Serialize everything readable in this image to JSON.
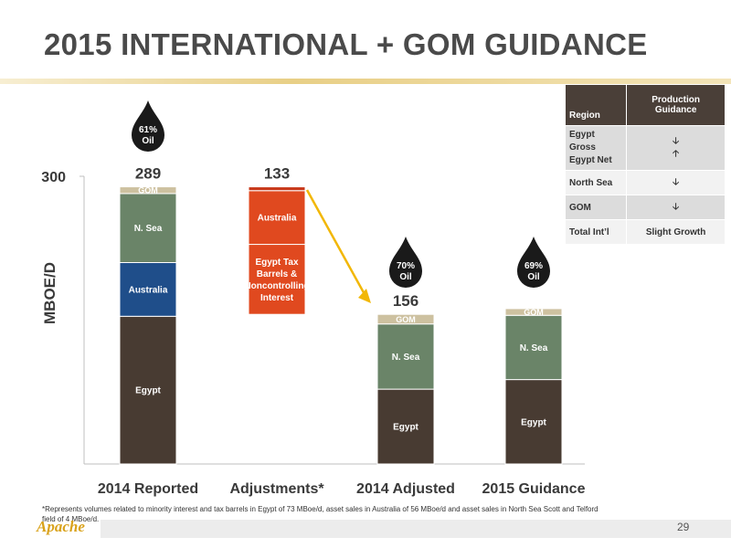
{
  "title": "2015 INTERNATIONAL + GOM GUIDANCE",
  "chart_data": {
    "type": "bar",
    "stacked": true,
    "ylabel": "MBOE/D",
    "ylim": [
      0,
      300
    ],
    "y_tick_labels": [
      "300"
    ],
    "categories": [
      "2014 Reported",
      "Adjustments*",
      "2014 Adjusted",
      "2015 Guidance"
    ],
    "totals": [
      "289",
      "133",
      "156",
      ""
    ],
    "bars": [
      {
        "category": "2014 Reported",
        "base": 0,
        "segments": [
          {
            "label": "Egypt",
            "value": 154,
            "color": "#483b32"
          },
          {
            "label": "Australia",
            "value": 56,
            "color": "#1f4e8a"
          },
          {
            "label": "N. Sea",
            "value": 72,
            "color": "#6a8468"
          },
          {
            "label": "GOM",
            "value": 7,
            "color": "#cdc1a0"
          }
        ]
      },
      {
        "category": "Adjustments*",
        "base": 156,
        "segments": [
          {
            "label": "Egypt Tax Barrels & Noncontrolling Interest",
            "value": 73,
            "color": "#e0491f"
          },
          {
            "label": "Australia",
            "value": 56,
            "color": "#e0491f"
          },
          {
            "label": "",
            "value": 4,
            "color": "#c8381a"
          }
        ]
      },
      {
        "category": "2014 Adjusted",
        "base": 0,
        "segments": [
          {
            "label": "Egypt",
            "value": 78,
            "color": "#483b32"
          },
          {
            "label": "N. Sea",
            "value": 68,
            "color": "#6a8468"
          },
          {
            "label": "GOM",
            "value": 10,
            "color": "#cdc1a0"
          }
        ]
      },
      {
        "category": "2015 Guidance",
        "base": 0,
        "segments": [
          {
            "label": "Egypt",
            "value": 88,
            "color": "#483b32"
          },
          {
            "label": "N. Sea",
            "value": 67,
            "color": "#6a8468"
          },
          {
            "label": "GOM",
            "value": 7,
            "color": "#cdc1a0"
          }
        ]
      }
    ],
    "oil_drops": [
      {
        "category": "2014 Reported",
        "pct": "61%",
        "word": "Oil"
      },
      {
        "category": "2014 Adjusted",
        "pct": "70%",
        "word": "Oil"
      },
      {
        "category": "2015 Guidance",
        "pct": "69%",
        "word": "Oil"
      }
    ],
    "arrow_color": "#f2b705"
  },
  "table": {
    "headers": [
      "Region",
      "Production Guidance"
    ],
    "rows": [
      {
        "region": [
          "Egypt Gross",
          "Egypt Net"
        ],
        "guidance": [
          "down-arrow-icon",
          "up-arrow-icon"
        ],
        "shade": "grey"
      },
      {
        "region": [
          "North Sea"
        ],
        "guidance": [
          "down-arrow-icon"
        ],
        "shade": "white"
      },
      {
        "region": [
          "GOM"
        ],
        "guidance": [
          "down-arrow-icon"
        ],
        "shade": "grey"
      },
      {
        "region": [
          "Total Int’l"
        ],
        "guidance": [
          "Slight Growth"
        ],
        "shade": "white"
      }
    ]
  },
  "footnote": "*Represents volumes related to minority interest and tax barrels in Egypt of 73 MBoe/d, asset sales in Australia of 56 MBoe/d and asset sales in North Sea Scott and Telford field of 4 MBoe/d.",
  "footer": {
    "logo": "Apache",
    "page": "29"
  }
}
